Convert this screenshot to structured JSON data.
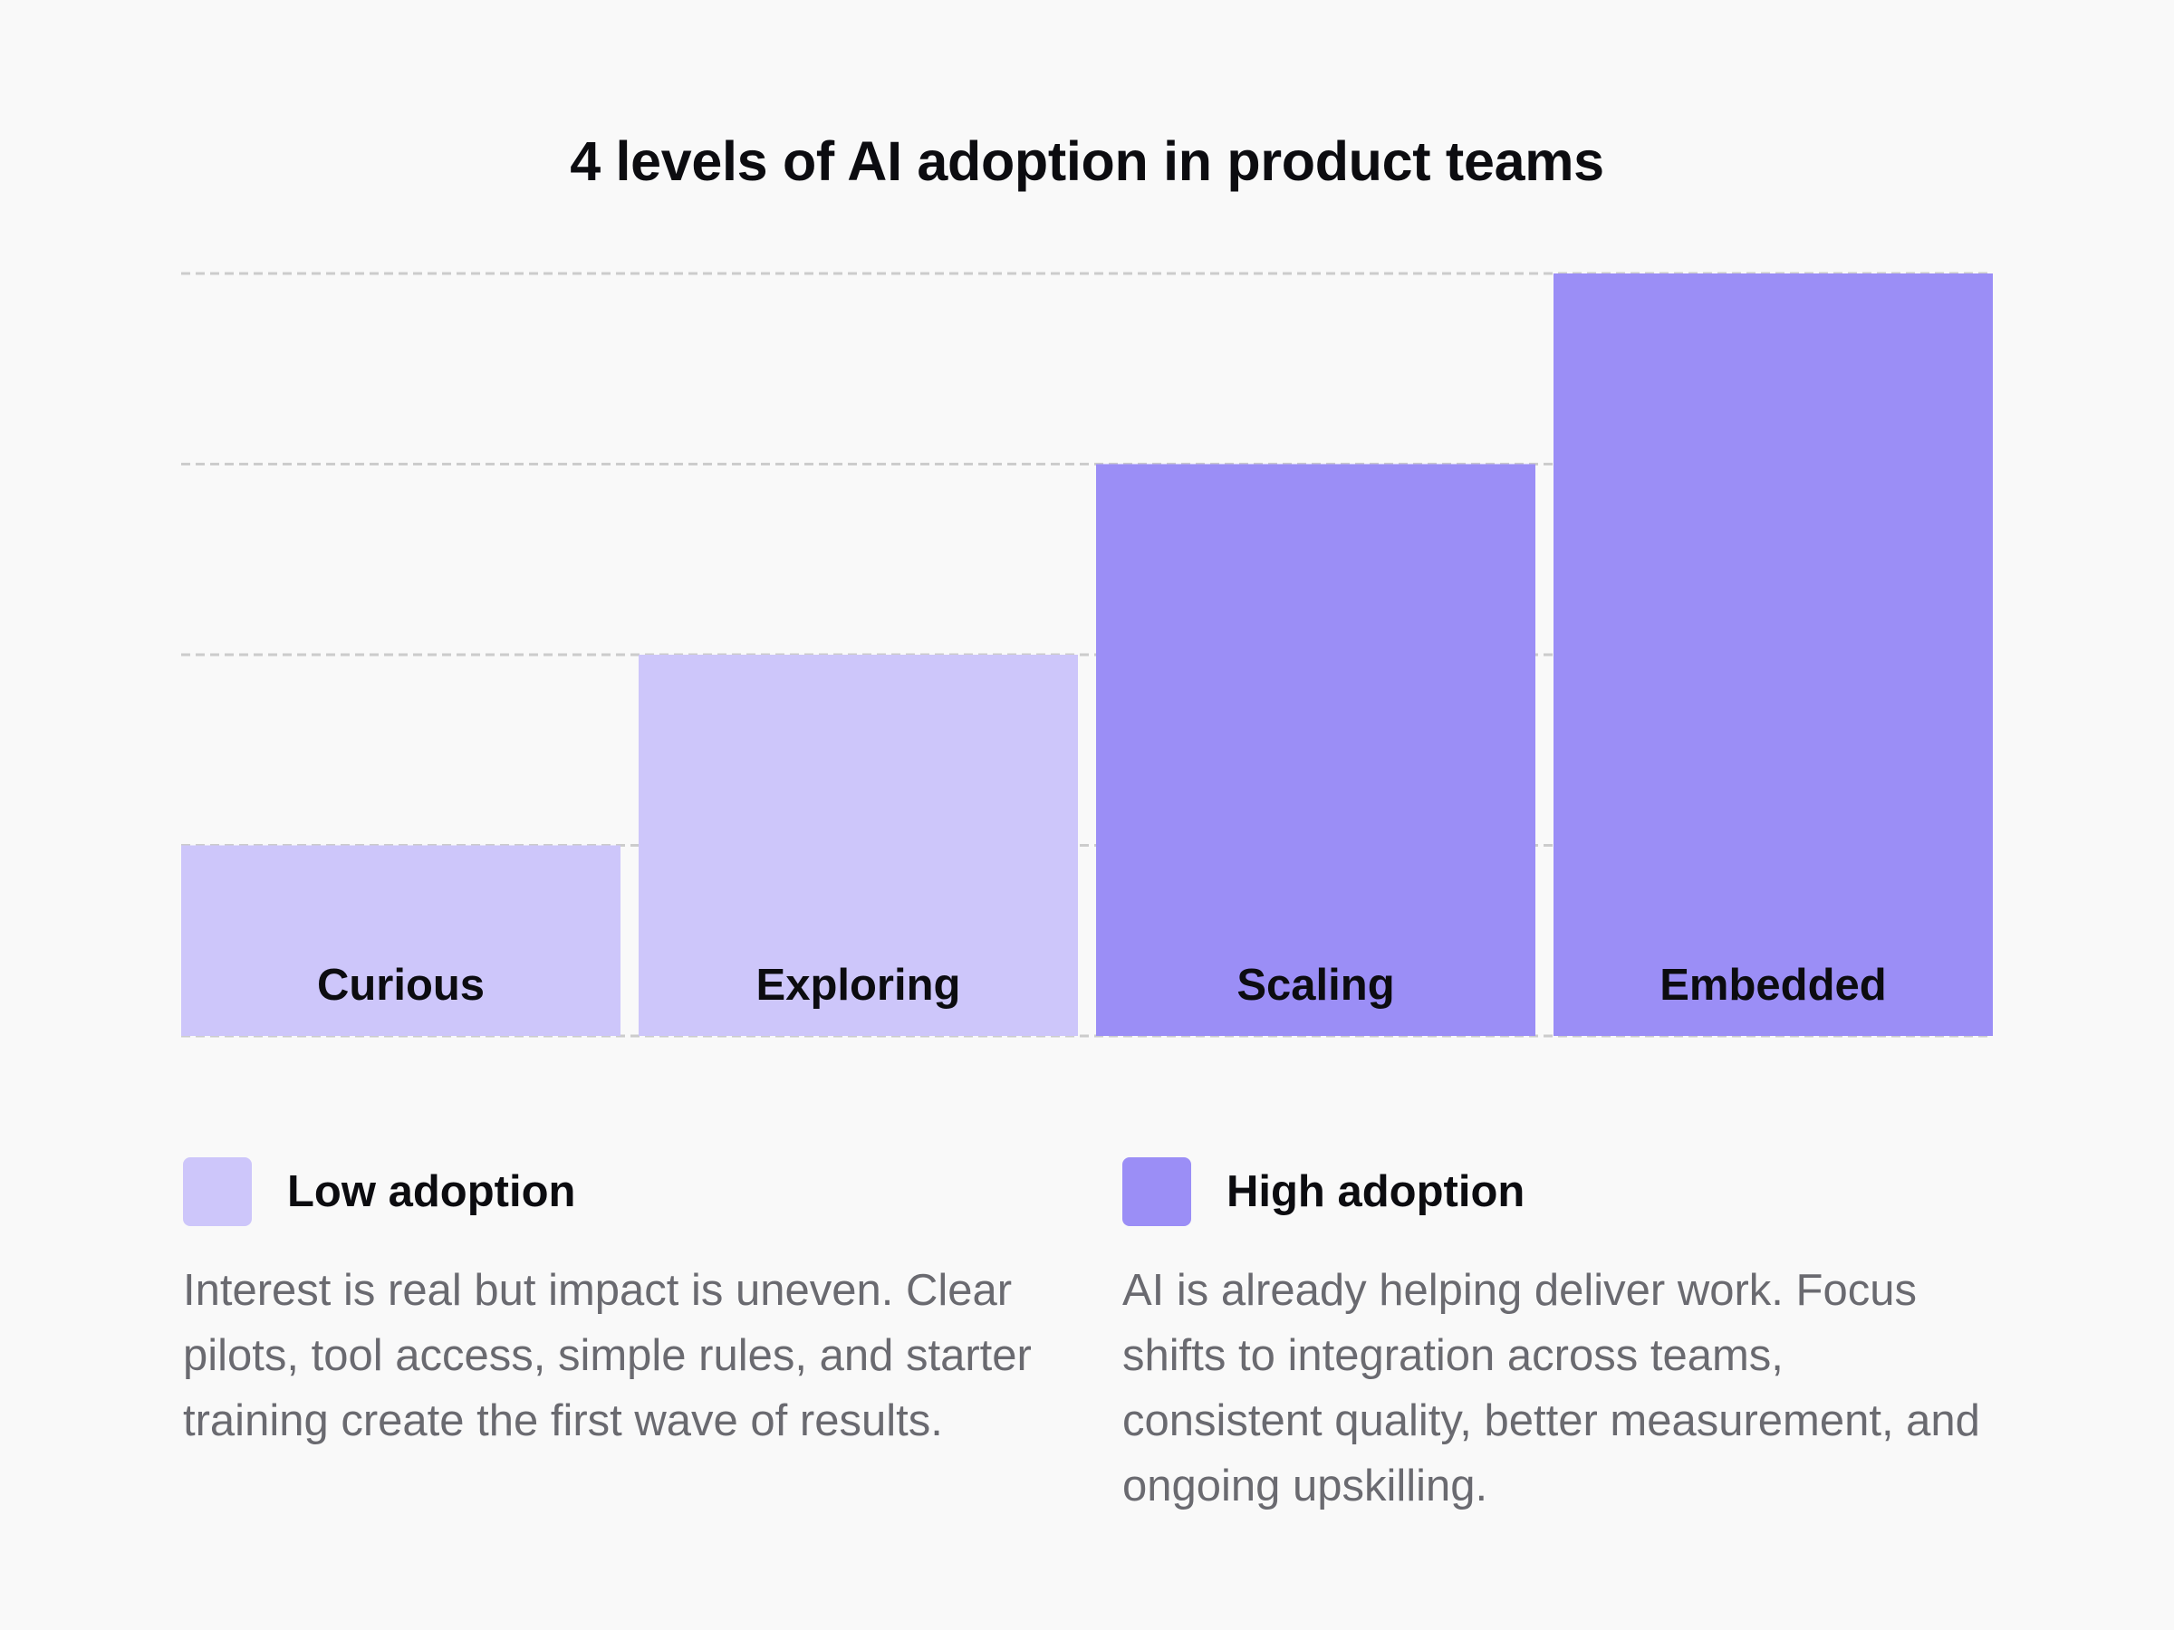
{
  "colors": {
    "background": "#f9f9f9",
    "low": "#cdc6fa",
    "high": "#9b8ef6",
    "grid": "#cccccc",
    "text": "#0c0c10",
    "muted": "#6a6a70"
  },
  "chart_data": {
    "type": "bar",
    "title": "4 levels of AI adoption in product teams",
    "categories": [
      "Curious",
      "Exploring",
      "Scaling",
      "Embedded"
    ],
    "values": [
      1,
      2,
      3,
      4
    ],
    "ylim": [
      0,
      4
    ],
    "grid": true,
    "xlabel": "",
    "ylabel": "",
    "bar_groups": [
      "low",
      "low",
      "high",
      "high"
    ],
    "legend": [
      {
        "key": "low",
        "label": "Low adoption",
        "description": "Interest is real but impact is uneven. Clear pilots, tool access, simple rules, and starter training create the first wave of results."
      },
      {
        "key": "high",
        "label": "High adoption",
        "description": "AI is already helping deliver work. Focus shifts to integration across teams, consistent quality, better measurement, and ongoing upskilling."
      }
    ],
    "legend_position": "bottom"
  }
}
